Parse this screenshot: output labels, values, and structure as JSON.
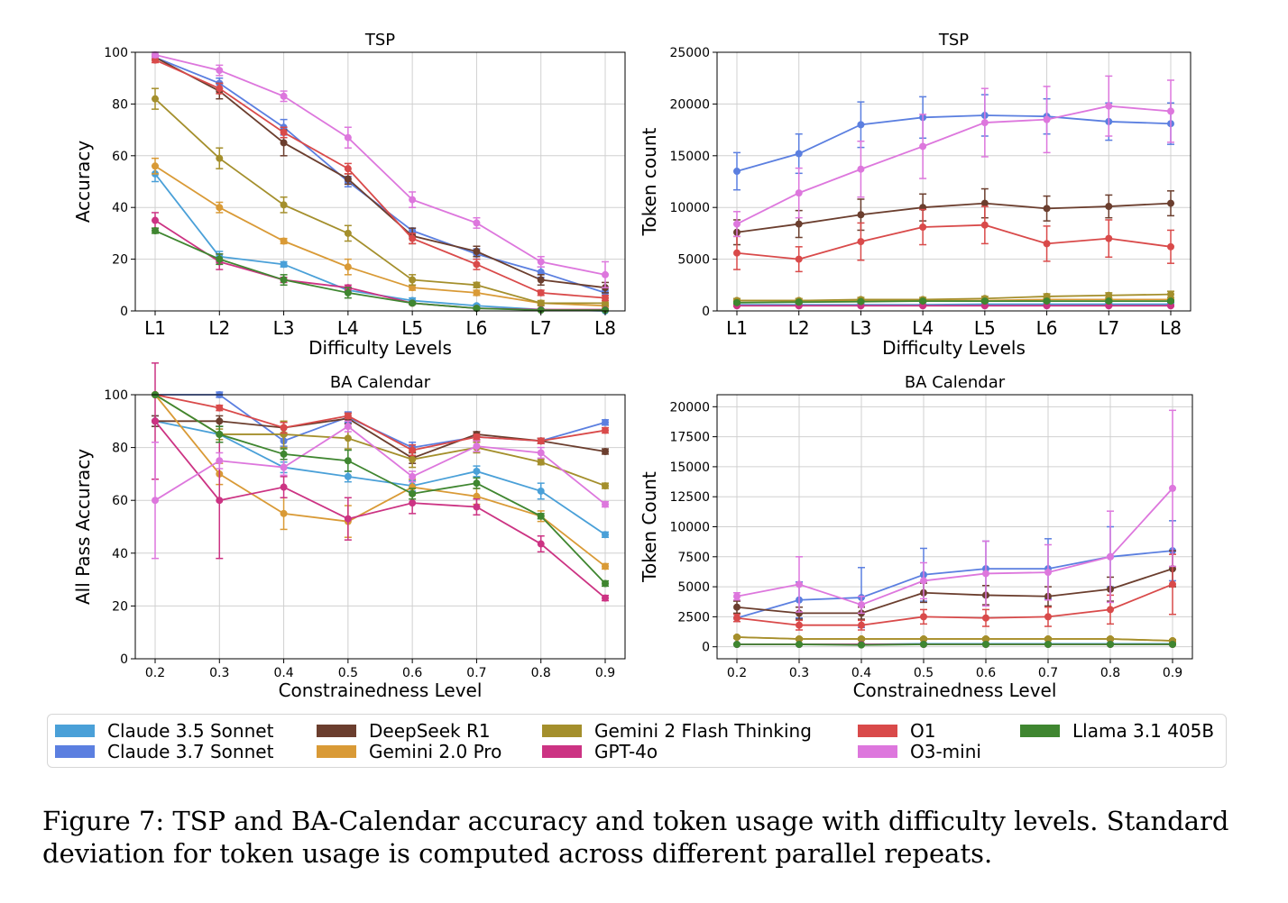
{
  "colors": {
    "Claude 3.5 Sonnet": "#4aa0d8",
    "Claude 3.7 Sonnet": "#5b7fe0",
    "DeepSeek R1": "#6b3e2e",
    "Gemini 2.0 Pro": "#d99a36",
    "Gemini 2 Flash Thinking": "#a48f2c",
    "GPT-4o": "#cc3383",
    "O1": "#d94a4a",
    "O3-mini": "#dd77dd",
    "Llama 3.1 405B": "#3f8630"
  },
  "legend": {
    "entries": [
      "Claude 3.5 Sonnet",
      "Claude 3.7 Sonnet",
      "DeepSeek R1",
      "Gemini 2.0 Pro",
      "Gemini 2 Flash Thinking",
      "GPT-4o",
      "O1",
      "O3-mini",
      "Llama 3.1 405B"
    ]
  },
  "caption": "Figure 7: TSP and BA-Calendar accuracy and token usage with difficulty levels. Standard deviation for token usage is computed across different parallel repeats.",
  "chart_data": [
    {
      "type": "line",
      "title": "TSP",
      "xlabel": "Difficulty Levels",
      "ylabel": "Accuracy",
      "categories": [
        "L1",
        "L2",
        "L3",
        "L4",
        "L5",
        "L6",
        "L7",
        "L8"
      ],
      "ylim": [
        0,
        100
      ],
      "yticks": [
        "0",
        "20",
        "40",
        "60",
        "80",
        "100"
      ],
      "grid": true,
      "series": [
        {
          "name": "Claude 3.5 Sonnet",
          "values": [
            53,
            21,
            18,
            8,
            4,
            2,
            0.5,
            0
          ],
          "err": [
            3,
            2,
            1,
            1,
            1,
            0.5,
            0.3,
            0
          ]
        },
        {
          "name": "Claude 3.7 Sonnet",
          "values": [
            98,
            88,
            71,
            50,
            31,
            22,
            15,
            7
          ],
          "err": [
            1,
            2,
            3,
            2,
            1,
            2,
            2,
            1
          ]
        },
        {
          "name": "DeepSeek R1",
          "values": [
            98,
            85,
            65,
            51,
            29,
            23,
            12,
            9
          ],
          "err": [
            1,
            3,
            5,
            2,
            3,
            2,
            2,
            2
          ]
        },
        {
          "name": "Gemini 2.0 Pro",
          "values": [
            56,
            40,
            27,
            17,
            9,
            7,
            3,
            2
          ],
          "err": [
            3,
            2,
            1,
            3,
            1,
            1,
            0.5,
            0.5
          ]
        },
        {
          "name": "Gemini 2 Flash Thinking",
          "values": [
            82,
            59,
            41,
            30,
            12,
            10,
            3,
            3
          ],
          "err": [
            4,
            4,
            3,
            3,
            2,
            1,
            1,
            1
          ]
        },
        {
          "name": "GPT-4o",
          "values": [
            35,
            19,
            12,
            9,
            3,
            1,
            0.5,
            0.5
          ],
          "err": [
            3,
            3,
            1,
            1,
            0.5,
            0.3,
            0.2,
            0.2
          ]
        },
        {
          "name": "O1",
          "values": [
            97,
            86,
            69,
            55,
            28,
            18,
            7,
            5
          ],
          "err": [
            1,
            2,
            2,
            2,
            2,
            2,
            1,
            1
          ]
        },
        {
          "name": "O3-mini",
          "values": [
            99,
            93,
            83,
            67,
            43,
            34,
            19,
            14
          ],
          "err": [
            1,
            2,
            2,
            4,
            3,
            2,
            2,
            5
          ]
        },
        {
          "name": "Llama 3.1 405B",
          "values": [
            31,
            20,
            12,
            7,
            3,
            1,
            0.3,
            0.3
          ],
          "err": [
            1,
            2,
            2,
            2,
            0.5,
            0.3,
            0.2,
            0.2
          ]
        }
      ]
    },
    {
      "type": "line",
      "title": "TSP",
      "xlabel": "Difficulty Levels",
      "ylabel": "Token count",
      "categories": [
        "L1",
        "L2",
        "L3",
        "L4",
        "L5",
        "L6",
        "L7",
        "L8"
      ],
      "ylim": [
        0,
        25000
      ],
      "yticks": [
        "0",
        "5000",
        "10000",
        "15000",
        "20000",
        "25000"
      ],
      "grid": true,
      "series": [
        {
          "name": "Claude 3.5 Sonnet",
          "values": [
            600,
            600,
            600,
            600,
            650,
            650,
            650,
            650
          ],
          "err": [
            100,
            100,
            100,
            100,
            100,
            100,
            100,
            100
          ]
        },
        {
          "name": "Claude 3.7 Sonnet",
          "values": [
            13500,
            15200,
            18000,
            18700,
            18900,
            18800,
            18300,
            18100
          ],
          "err": [
            1800,
            1900,
            2200,
            2000,
            2000,
            1700,
            1800,
            2000
          ]
        },
        {
          "name": "DeepSeek R1",
          "values": [
            7600,
            8400,
            9300,
            10000,
            10400,
            9900,
            10100,
            10400
          ],
          "err": [
            1200,
            1300,
            1500,
            1300,
            1400,
            1200,
            1100,
            1200
          ]
        },
        {
          "name": "Gemini 2.0 Pro",
          "values": [
            1000,
            1000,
            1000,
            1000,
            1000,
            1100,
            1100,
            1100
          ],
          "err": [
            150,
            150,
            150,
            150,
            150,
            150,
            150,
            150
          ]
        },
        {
          "name": "Gemini 2 Flash Thinking",
          "values": [
            1000,
            1000,
            1100,
            1100,
            1200,
            1400,
            1500,
            1600
          ],
          "err": [
            200,
            200,
            200,
            200,
            200,
            250,
            250,
            300
          ]
        },
        {
          "name": "GPT-4o",
          "values": [
            500,
            500,
            500,
            500,
            500,
            500,
            500,
            500
          ],
          "err": [
            50,
            50,
            50,
            50,
            50,
            50,
            50,
            50
          ]
        },
        {
          "name": "O1",
          "values": [
            5600,
            5000,
            6700,
            8100,
            8300,
            6500,
            7000,
            6200
          ],
          "err": [
            1600,
            1200,
            1800,
            1700,
            1800,
            1700,
            1800,
            1600
          ]
        },
        {
          "name": "O3-mini",
          "values": [
            8400,
            11400,
            13700,
            15900,
            18200,
            18500,
            19800,
            19300
          ],
          "err": [
            1200,
            2400,
            2700,
            3100,
            3300,
            3200,
            2900,
            3000
          ]
        },
        {
          "name": "Llama 3.1 405B",
          "values": [
            800,
            850,
            900,
            950,
            950,
            950,
            950,
            950
          ],
          "err": [
            100,
            100,
            100,
            100,
            100,
            100,
            100,
            100
          ]
        }
      ]
    },
    {
      "type": "line",
      "title": "BA Calendar",
      "xlabel": "Constrainedness Level",
      "ylabel": "All Pass Accuracy",
      "categories": [
        "0.2",
        "0.3",
        "0.4",
        "0.5",
        "0.6",
        "0.7",
        "0.8",
        "0.9"
      ],
      "ylim": [
        0,
        100
      ],
      "yticks": [
        "0",
        "20",
        "40",
        "60",
        "80",
        "100"
      ],
      "grid": true,
      "series": [
        {
          "name": "Claude 3.5 Sonnet",
          "values": [
            90,
            85,
            72.5,
            69,
            65.5,
            71,
            63.5,
            47
          ],
          "err": [
            2,
            3,
            2,
            2,
            2,
            2,
            3,
            1
          ]
        },
        {
          "name": "Claude 3.7 Sonnet",
          "values": [
            100,
            100,
            82.5,
            91.5,
            80,
            84,
            82.5,
            89.5
          ],
          "err": [
            0,
            1,
            2,
            2,
            2,
            1,
            1,
            1
          ]
        },
        {
          "name": "DeepSeek R1",
          "values": [
            90,
            90,
            87.5,
            91,
            76,
            85,
            82.5,
            78.5
          ],
          "err": [
            2,
            2,
            2,
            2,
            2,
            1,
            1,
            1
          ]
        },
        {
          "name": "Gemini 2.0 Pro",
          "values": [
            100,
            70,
            55,
            52,
            65,
            61.5,
            54,
            35
          ],
          "err": [
            0,
            4,
            6,
            6,
            3,
            3,
            2,
            1
          ]
        },
        {
          "name": "Gemini 2 Flash Thinking",
          "values": [
            100,
            85,
            85,
            83.5,
            75.5,
            80,
            74.5,
            65.5
          ],
          "err": [
            0,
            2,
            5,
            4,
            3,
            2,
            1,
            1
          ]
        },
        {
          "name": "GPT-4o",
          "values": [
            90,
            60,
            65,
            53,
            59,
            57.5,
            43.5,
            23
          ],
          "err": [
            22,
            22,
            4,
            8,
            4,
            3,
            3,
            1
          ]
        },
        {
          "name": "O1",
          "values": [
            100,
            95,
            87.5,
            92,
            79,
            84,
            82.5,
            86.5
          ],
          "err": [
            0,
            1,
            2,
            1,
            2,
            1,
            1,
            1
          ]
        },
        {
          "name": "O3-mini",
          "values": [
            60,
            75,
            72.5,
            88,
            69,
            80.5,
            78,
            58.5
          ],
          "err": [
            22,
            3,
            3,
            2,
            2,
            2,
            2,
            1
          ]
        },
        {
          "name": "Llama 3.1 405B",
          "values": [
            100,
            85,
            77.5,
            75,
            62.5,
            66.5,
            54,
            28.5
          ],
          "err": [
            0,
            3,
            2,
            4,
            2,
            2,
            1,
            1
          ]
        }
      ]
    },
    {
      "type": "line",
      "title": "BA Calendar",
      "xlabel": "Constrainedness Level",
      "ylabel": "Token Count",
      "categories": [
        "0.2",
        "0.3",
        "0.4",
        "0.5",
        "0.6",
        "0.7",
        "0.8",
        "0.9"
      ],
      "ylim": [
        -1000,
        21000
      ],
      "yticks": [
        "0",
        "2500",
        "5000",
        "7500",
        "10000",
        "12500",
        "15000",
        "17500",
        "20000"
      ],
      "grid": true,
      "series": [
        {
          "name": "Claude 3.5 Sonnet",
          "values": [
            200,
            200,
            200,
            250,
            250,
            250,
            250,
            250
          ],
          "err": [
            50,
            50,
            50,
            50,
            50,
            50,
            50,
            50
          ]
        },
        {
          "name": "Claude 3.7 Sonnet",
          "values": [
            2400,
            3900,
            4100,
            6000,
            6500,
            6500,
            7500,
            8000
          ],
          "err": [
            300,
            1500,
            2500,
            2200,
            2300,
            2500,
            2500,
            2500
          ]
        },
        {
          "name": "DeepSeek R1",
          "values": [
            3300,
            2800,
            2800,
            4500,
            4300,
            4200,
            4800,
            6500
          ],
          "err": [
            500,
            500,
            500,
            800,
            800,
            800,
            1000,
            1500
          ]
        },
        {
          "name": "Gemini 2.0 Pro",
          "values": [
            800,
            650,
            650,
            650,
            650,
            650,
            650,
            500
          ],
          "err": [
            100,
            100,
            100,
            100,
            100,
            100,
            100,
            100
          ]
        },
        {
          "name": "Gemini 2 Flash Thinking",
          "values": [
            800,
            650,
            650,
            650,
            650,
            650,
            650,
            500
          ],
          "err": [
            100,
            100,
            100,
            100,
            100,
            100,
            100,
            100
          ]
        },
        {
          "name": "GPT-4o",
          "values": [
            200,
            200,
            200,
            200,
            200,
            200,
            200,
            200
          ],
          "err": [
            50,
            50,
            50,
            50,
            50,
            50,
            50,
            50
          ]
        },
        {
          "name": "O1",
          "values": [
            2400,
            1800,
            1800,
            2500,
            2400,
            2500,
            3100,
            5200
          ],
          "err": [
            300,
            400,
            400,
            600,
            700,
            800,
            1200,
            2500
          ]
        },
        {
          "name": "O3-mini",
          "values": [
            4200,
            5200,
            3500,
            5500,
            6100,
            6200,
            7500,
            13200
          ],
          "err": [
            300,
            2300,
            700,
            1500,
            2700,
            2300,
            3800,
            6500
          ]
        },
        {
          "name": "Llama 3.1 405B",
          "values": [
            200,
            200,
            150,
            200,
            200,
            200,
            200,
            200
          ],
          "err": [
            50,
            50,
            50,
            50,
            50,
            50,
            50,
            50
          ]
        }
      ]
    }
  ]
}
